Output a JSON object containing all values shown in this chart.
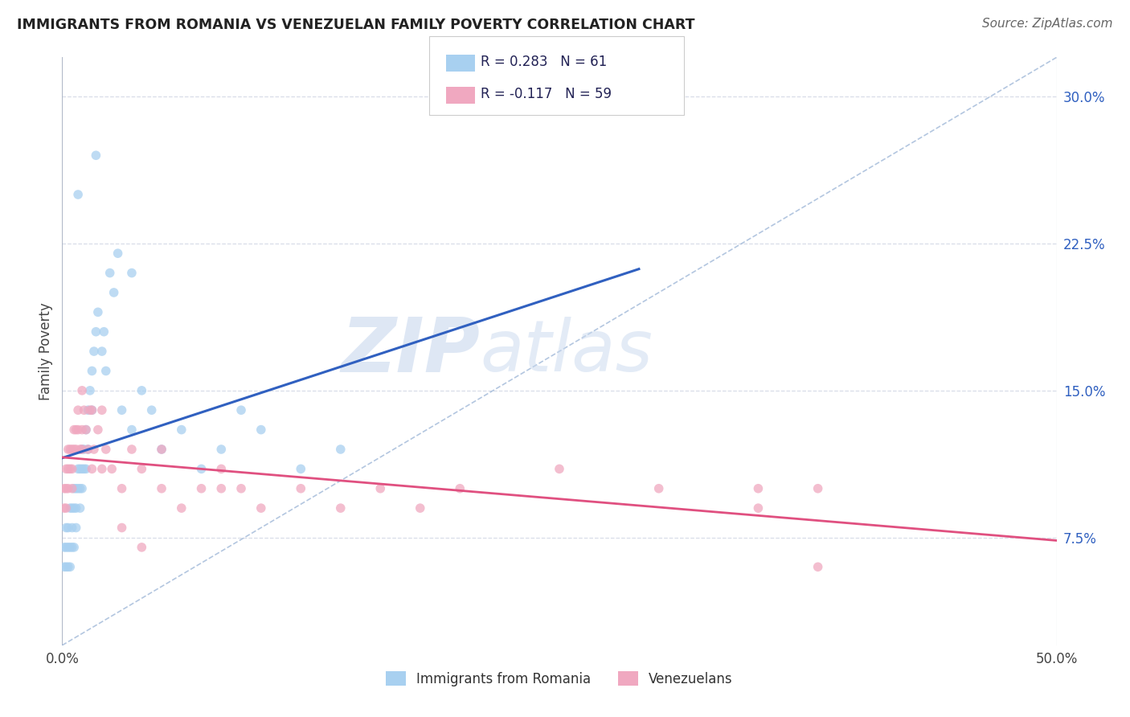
{
  "title": "IMMIGRANTS FROM ROMANIA VS VENEZUELAN FAMILY POVERTY CORRELATION CHART",
  "source": "Source: ZipAtlas.com",
  "ylabel": "Family Poverty",
  "yticks": [
    0.075,
    0.15,
    0.225,
    0.3
  ],
  "ytick_labels": [
    "7.5%",
    "15.0%",
    "22.5%",
    "30.0%"
  ],
  "xlim": [
    0.0,
    0.5
  ],
  "ylim": [
    0.02,
    0.32
  ],
  "color_romania": "#a8d0f0",
  "color_venezuela": "#f0a8c0",
  "trend_color_romania": "#3060c0",
  "trend_color_venezuela": "#e05080",
  "ref_line_color": "#a0b8d8",
  "grid_color": "#d8dde8",
  "background_color": "#ffffff",
  "romania_x": [
    0.001,
    0.001,
    0.002,
    0.002,
    0.002,
    0.003,
    0.003,
    0.003,
    0.004,
    0.004,
    0.004,
    0.005,
    0.005,
    0.005,
    0.006,
    0.006,
    0.006,
    0.007,
    0.007,
    0.007,
    0.008,
    0.008,
    0.009,
    0.009,
    0.009,
    0.01,
    0.01,
    0.01,
    0.011,
    0.011,
    0.012,
    0.012,
    0.013,
    0.013,
    0.014,
    0.015,
    0.015,
    0.016,
    0.017,
    0.018,
    0.02,
    0.021,
    0.022,
    0.024,
    0.026,
    0.028,
    0.03,
    0.035,
    0.04,
    0.045,
    0.05,
    0.06,
    0.07,
    0.08,
    0.09,
    0.1,
    0.12,
    0.14,
    0.017,
    0.008,
    0.035
  ],
  "romania_y": [
    0.07,
    0.06,
    0.08,
    0.07,
    0.06,
    0.08,
    0.07,
    0.06,
    0.09,
    0.07,
    0.06,
    0.09,
    0.08,
    0.07,
    0.1,
    0.09,
    0.07,
    0.1,
    0.09,
    0.08,
    0.11,
    0.1,
    0.11,
    0.1,
    0.09,
    0.12,
    0.11,
    0.1,
    0.12,
    0.11,
    0.13,
    0.11,
    0.14,
    0.12,
    0.15,
    0.16,
    0.14,
    0.17,
    0.18,
    0.19,
    0.17,
    0.18,
    0.16,
    0.21,
    0.2,
    0.22,
    0.14,
    0.13,
    0.15,
    0.14,
    0.12,
    0.13,
    0.11,
    0.12,
    0.14,
    0.13,
    0.11,
    0.12,
    0.27,
    0.25,
    0.21
  ],
  "venezuela_x": [
    0.001,
    0.001,
    0.002,
    0.002,
    0.002,
    0.003,
    0.003,
    0.003,
    0.004,
    0.004,
    0.005,
    0.005,
    0.005,
    0.006,
    0.006,
    0.007,
    0.007,
    0.008,
    0.008,
    0.009,
    0.01,
    0.01,
    0.011,
    0.012,
    0.013,
    0.014,
    0.015,
    0.016,
    0.018,
    0.02,
    0.022,
    0.025,
    0.03,
    0.035,
    0.04,
    0.05,
    0.06,
    0.07,
    0.08,
    0.09,
    0.1,
    0.12,
    0.14,
    0.16,
    0.18,
    0.2,
    0.25,
    0.3,
    0.35,
    0.38,
    0.01,
    0.015,
    0.02,
    0.03,
    0.04,
    0.05,
    0.08,
    0.35,
    0.38
  ],
  "venezuela_y": [
    0.1,
    0.09,
    0.11,
    0.1,
    0.09,
    0.12,
    0.11,
    0.1,
    0.12,
    0.11,
    0.12,
    0.11,
    0.1,
    0.13,
    0.12,
    0.13,
    0.12,
    0.14,
    0.13,
    0.12,
    0.13,
    0.12,
    0.14,
    0.13,
    0.12,
    0.14,
    0.11,
    0.12,
    0.13,
    0.14,
    0.12,
    0.11,
    0.1,
    0.12,
    0.11,
    0.1,
    0.09,
    0.1,
    0.11,
    0.1,
    0.09,
    0.1,
    0.09,
    0.1,
    0.09,
    0.1,
    0.11,
    0.1,
    0.09,
    0.1,
    0.15,
    0.14,
    0.11,
    0.08,
    0.07,
    0.12,
    0.1,
    0.1,
    0.06
  ],
  "legend_text1": "R = 0.283   N = 61",
  "legend_text2": "R = -0.117   N = 59",
  "legend_label1": "Immigrants from Romania",
  "legend_label2": "Venezuelans"
}
